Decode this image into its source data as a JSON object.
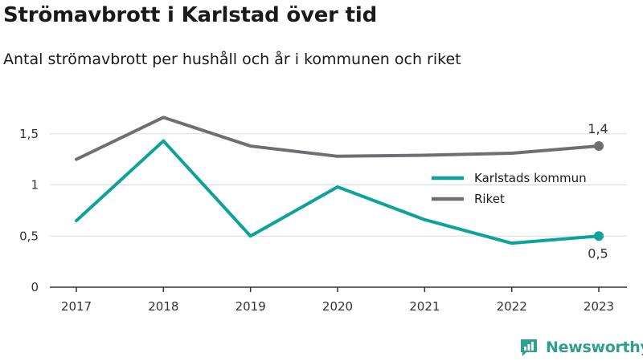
{
  "title": "Strömavbrott i Karlstad över tid",
  "subtitle": "Antal strömavbrott per hushåll och år i kommunen och riket",
  "brand": {
    "name": "Newsworthy",
    "icon": "newsworthy-logo-icon",
    "color": "#2f9f8f"
  },
  "chart_data": {
    "type": "line",
    "title": "Strömavbrott i Karlstad över tid",
    "subtitle": "Antal strömavbrott per hushåll och år i kommunen och riket",
    "x": [
      "2017",
      "2018",
      "2019",
      "2020",
      "2021",
      "2022",
      "2023"
    ],
    "ylim": [
      0,
      1.8
    ],
    "yticks": [
      0,
      0.5,
      1,
      1.5
    ],
    "ytick_labels": [
      "0",
      "0,5",
      "1",
      "1,5"
    ],
    "grid": true,
    "legend_position": "right",
    "series": [
      {
        "name": "Karlstads kommun",
        "color": "#0ea39a",
        "values": [
          0.65,
          1.43,
          0.5,
          0.98,
          0.66,
          0.43,
          0.5
        ],
        "end_label": "0,5"
      },
      {
        "name": "Riket",
        "color": "#6e6e73",
        "values": [
          1.25,
          1.66,
          1.38,
          1.28,
          1.29,
          1.31,
          1.38
        ],
        "end_label": "1,4"
      }
    ]
  }
}
